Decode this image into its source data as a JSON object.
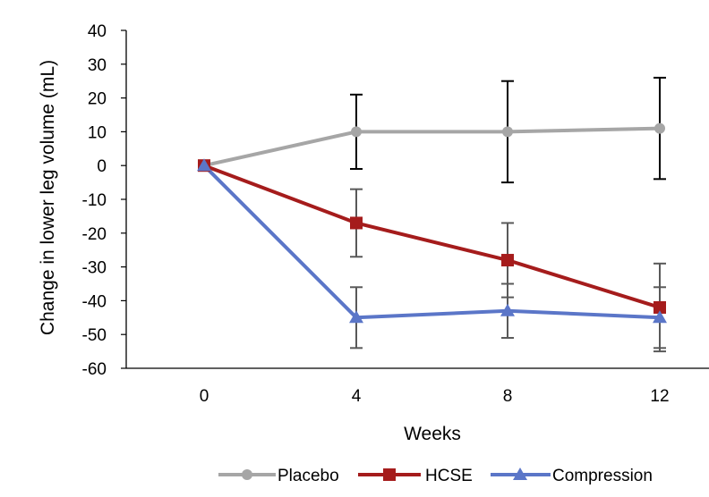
{
  "chart_data": {
    "type": "line",
    "title": "",
    "xlabel": "Weeks",
    "ylabel": "Change in lower leg volume (mL)",
    "x": [
      0,
      4,
      8,
      12
    ],
    "x_tick_labels": [
      "0",
      "4",
      "8",
      "12"
    ],
    "ylim": [
      -60,
      40
    ],
    "y_ticks": [
      40,
      30,
      20,
      10,
      0,
      -10,
      -20,
      -30,
      -40,
      -50,
      -60
    ],
    "y_tick_labels": [
      "40",
      "30",
      "20",
      "10",
      "0",
      "-10",
      "-20",
      "-30",
      "-40",
      "-50",
      "-60"
    ],
    "grid": false,
    "legend_position": "bottom",
    "series": [
      {
        "name": "Placebo",
        "color": "#a6a6a6",
        "marker": "circle",
        "values": [
          0,
          10,
          10,
          11
        ],
        "error_low": [
          null,
          -1,
          -5,
          -4
        ],
        "error_high": [
          null,
          21,
          25,
          26
        ],
        "error_color": "#000000"
      },
      {
        "name": "HCSE",
        "color": "#a51c1c",
        "marker": "square",
        "values": [
          0,
          -17,
          -28,
          -42
        ],
        "error_low": [
          null,
          -27,
          -39,
          -55
        ],
        "error_high": [
          null,
          -7,
          -17,
          -29
        ],
        "error_color": "#595959"
      },
      {
        "name": "Compression",
        "color": "#5b76c8",
        "marker": "triangle",
        "values": [
          0,
          -45,
          -43,
          -45
        ],
        "error_low": [
          null,
          -54,
          -51,
          -54
        ],
        "error_high": [
          null,
          -36,
          -35,
          -36
        ],
        "error_color": "#595959"
      }
    ]
  }
}
